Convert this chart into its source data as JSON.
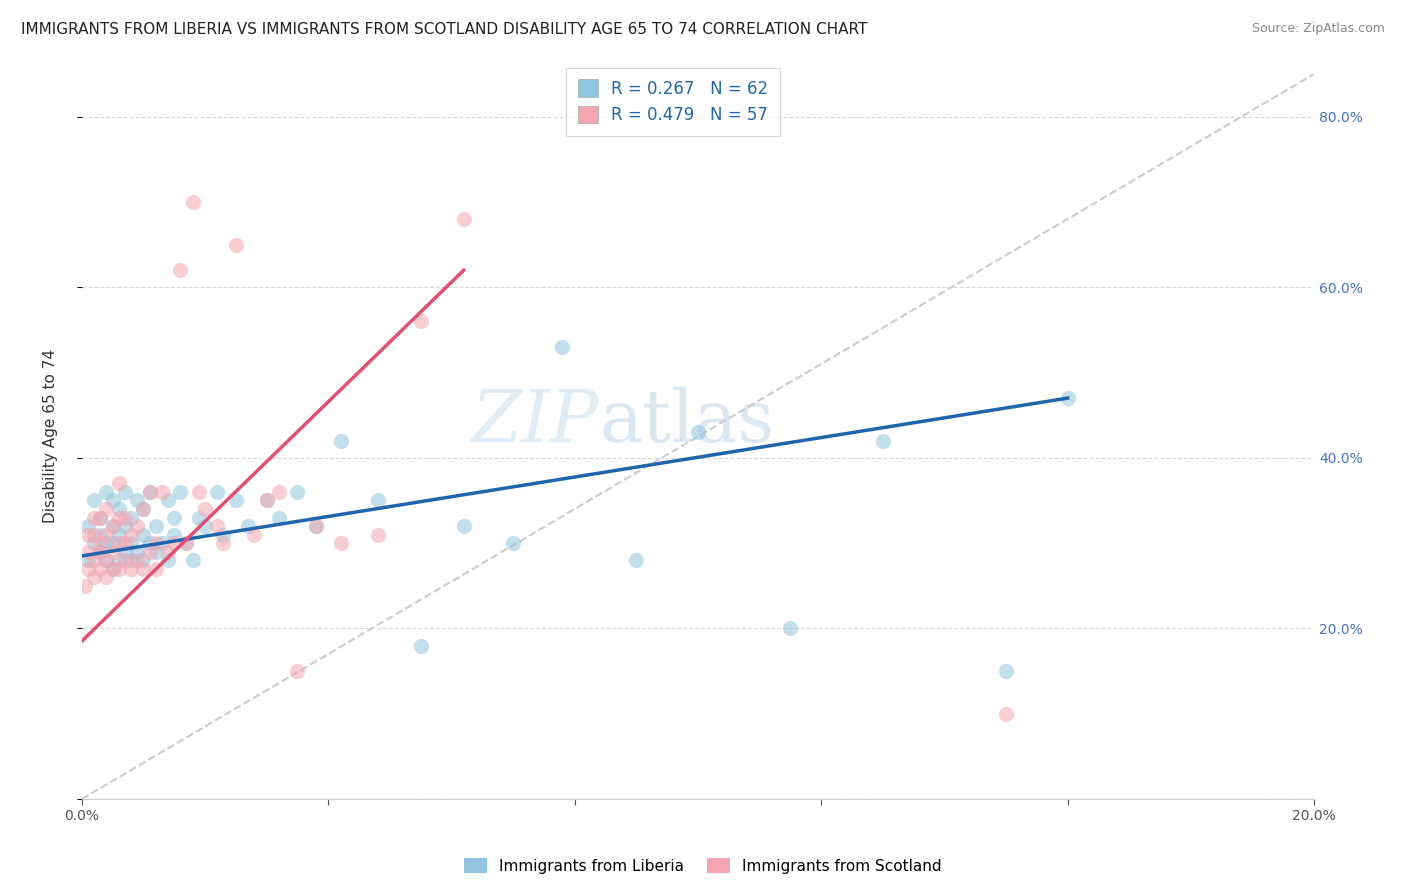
{
  "title": "IMMIGRANTS FROM LIBERIA VS IMMIGRANTS FROM SCOTLAND DISABILITY AGE 65 TO 74 CORRELATION CHART",
  "source": "Source: ZipAtlas.com",
  "ylabel": "Disability Age 65 to 74",
  "xlim": [
    0.0,
    0.2
  ],
  "ylim": [
    0.0,
    0.85
  ],
  "x_ticks": [
    0.0,
    0.04,
    0.08,
    0.12,
    0.16,
    0.2
  ],
  "x_tick_labels": [
    "0.0%",
    "",
    "",
    "",
    "",
    "20.0%"
  ],
  "y_ticks": [
    0.0,
    0.2,
    0.4,
    0.6,
    0.8
  ],
  "y_tick_labels": [
    "",
    "20.0%",
    "40.0%",
    "60.0%",
    "80.0%"
  ],
  "liberia_color": "#92c5de",
  "scotland_color": "#f4a6b0",
  "liberia_line_color": "#2166ac",
  "scotland_line_color": "#e05070",
  "liberia_R": 0.267,
  "liberia_N": 62,
  "scotland_R": 0.479,
  "scotland_N": 57,
  "liberia_x": [
    0.001,
    0.001,
    0.002,
    0.002,
    0.003,
    0.003,
    0.003,
    0.004,
    0.004,
    0.004,
    0.005,
    0.005,
    0.005,
    0.005,
    0.006,
    0.006,
    0.006,
    0.007,
    0.007,
    0.007,
    0.008,
    0.008,
    0.008,
    0.009,
    0.009,
    0.01,
    0.01,
    0.01,
    0.011,
    0.011,
    0.012,
    0.012,
    0.013,
    0.014,
    0.014,
    0.015,
    0.015,
    0.016,
    0.017,
    0.018,
    0.019,
    0.02,
    0.022,
    0.023,
    0.025,
    0.027,
    0.03,
    0.032,
    0.035,
    0.038,
    0.042,
    0.048,
    0.055,
    0.062,
    0.07,
    0.078,
    0.09,
    0.1,
    0.115,
    0.13,
    0.15,
    0.16
  ],
  "liberia_y": [
    0.28,
    0.32,
    0.3,
    0.35,
    0.29,
    0.31,
    0.33,
    0.28,
    0.3,
    0.36,
    0.27,
    0.3,
    0.32,
    0.35,
    0.28,
    0.31,
    0.34,
    0.29,
    0.32,
    0.36,
    0.28,
    0.3,
    0.33,
    0.29,
    0.35,
    0.28,
    0.31,
    0.34,
    0.3,
    0.36,
    0.29,
    0.32,
    0.3,
    0.28,
    0.35,
    0.31,
    0.33,
    0.36,
    0.3,
    0.28,
    0.33,
    0.32,
    0.36,
    0.31,
    0.35,
    0.32,
    0.35,
    0.33,
    0.36,
    0.32,
    0.42,
    0.35,
    0.18,
    0.32,
    0.3,
    0.53,
    0.28,
    0.43,
    0.2,
    0.42,
    0.15,
    0.47
  ],
  "scotland_x": [
    0.0005,
    0.001,
    0.001,
    0.001,
    0.002,
    0.002,
    0.002,
    0.002,
    0.003,
    0.003,
    0.003,
    0.003,
    0.004,
    0.004,
    0.004,
    0.004,
    0.005,
    0.005,
    0.005,
    0.006,
    0.006,
    0.006,
    0.006,
    0.007,
    0.007,
    0.007,
    0.008,
    0.008,
    0.009,
    0.009,
    0.01,
    0.01,
    0.011,
    0.011,
    0.012,
    0.012,
    0.013,
    0.014,
    0.015,
    0.016,
    0.017,
    0.018,
    0.019,
    0.02,
    0.022,
    0.023,
    0.025,
    0.028,
    0.03,
    0.032,
    0.035,
    0.038,
    0.042,
    0.048,
    0.055,
    0.062,
    0.15
  ],
  "scotland_y": [
    0.25,
    0.27,
    0.29,
    0.31,
    0.26,
    0.28,
    0.31,
    0.33,
    0.27,
    0.29,
    0.3,
    0.33,
    0.26,
    0.28,
    0.31,
    0.34,
    0.27,
    0.29,
    0.32,
    0.27,
    0.3,
    0.33,
    0.37,
    0.28,
    0.3,
    0.33,
    0.27,
    0.31,
    0.28,
    0.32,
    0.27,
    0.34,
    0.29,
    0.36,
    0.27,
    0.3,
    0.36,
    0.29,
    0.3,
    0.62,
    0.3,
    0.7,
    0.36,
    0.34,
    0.32,
    0.3,
    0.65,
    0.31,
    0.35,
    0.36,
    0.15,
    0.32,
    0.3,
    0.31,
    0.56,
    0.68,
    0.1
  ],
  "diag_line": [
    [
      0.0,
      0.0
    ],
    [
      0.2,
      0.85
    ]
  ],
  "liberia_reg_line": [
    [
      0.0,
      0.285
    ],
    [
      0.16,
      0.47
    ]
  ],
  "scotland_reg_line": [
    [
      0.0,
      0.185
    ],
    [
      0.062,
      0.62
    ]
  ]
}
